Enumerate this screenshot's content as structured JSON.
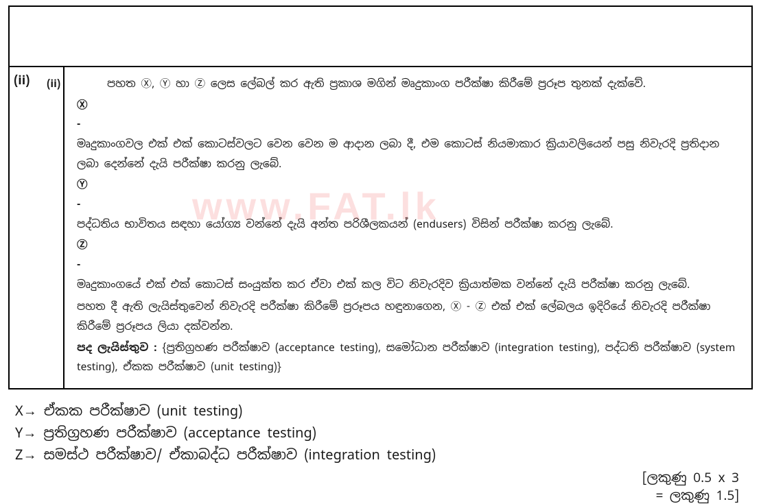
{
  "outer_label": "(ii)",
  "inner_label": "(ii)",
  "intro": "පහත Ⓧ, Ⓨ හා Ⓩ ලෙස ලේබල් කර ඇති ප්‍රකාශ මගින් මෘදුකාංග පරීක්ෂා කිරීමේ ප්‍රරූප තුනක් දැක්වේ.",
  "opts": {
    "x": {
      "label": "Ⓧ -",
      "text": "මෘදුකාංගවල එක් එක් කොටස්වලට වෙන වෙන ම ආදාන ලබා දී, එම කොටස් නියමාකාර ක්‍රියාවලියෙන් පසු නිවැරදි ප්‍රතිදාන ලබා දෙන්නේ දැයි පරීක්ෂා කරනු ලැබේ."
    },
    "y": {
      "label": "Ⓨ -",
      "text": "පද්ධතිය භාවිතය සඳහා යෝග්‍ය වන්නේ දැයි අන්ත පරිශීලකයන් (endusers) විසින් පරීක්ෂා කරනු ලැබේ."
    },
    "z": {
      "label": "Ⓩ -",
      "text": "මෘදුකාංගයේ එක් එක් කොටස් සංයුක්ත කර ඒවා එක් කල විට නිවැරදිව ක්‍රියාත්මක වන්නේ දැයි පරීක්ෂා කරනු ලැබේ."
    }
  },
  "instruction": "පහත දී ඇති ලැයිස්තුවෙන් නිවැරදි පරීක්ෂා කිරීමේ ප්‍රරූපය හඳුනාගෙන, Ⓧ - Ⓩ එක් එක් ලේබලය ඉදිරියේ නිවැරදි පරීක්ෂා කිරීමේ ප්‍රරූපය ලියා දක්වන්න.",
  "wordlist_label": "පද ලැයිස්තුව :",
  "wordlist": "{ප්‍රතිග්‍රහණ පරීක්ෂාව (acceptance testing), සමෝධාන පරීක්ෂාව (integration testing), පද්ධති පරීක්ෂාව (system testing), ඒකක පරීක්ෂාව (unit testing)}",
  "answers": {
    "x": "X→ ඒකක පරීක්ෂාව (unit testing)",
    "y": "Y→ ප්‍රතිග්‍රහණ පරීක්ෂාව (acceptance testing)",
    "z": "Z→ සමස්ථ පරීක්ෂාව/ ඒකාබද්ධ පරීක්ෂාව (integration testing)"
  },
  "marks": {
    "line1": "[ලකුණු 0.5  x 3",
    "line2": "= ලකුණු 1.5]"
  },
  "watermark": "www.FAT.lk"
}
